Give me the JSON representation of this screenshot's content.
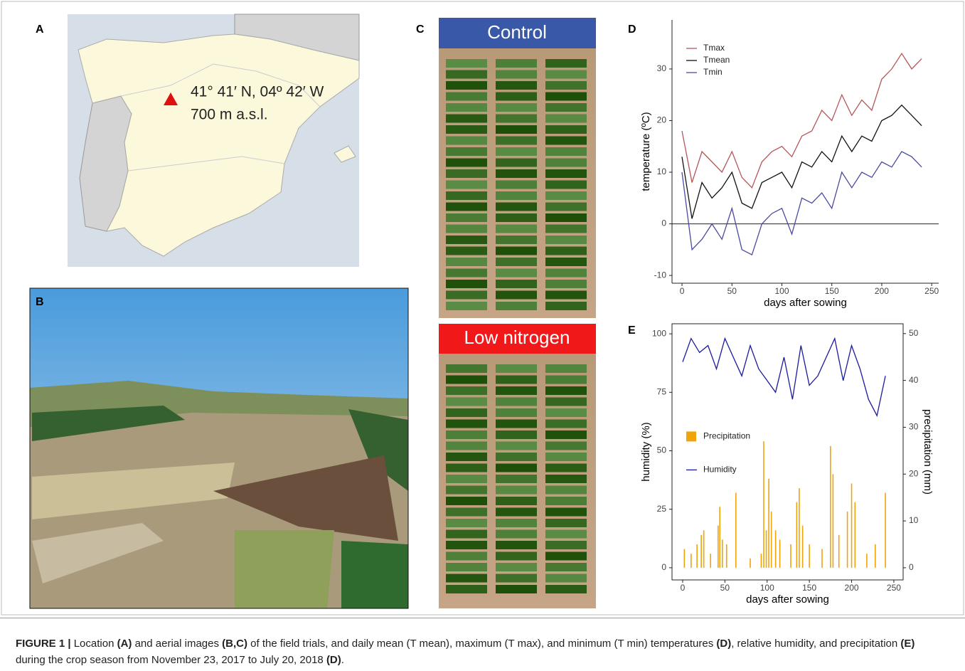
{
  "panels": {
    "A": {
      "letter": "A",
      "coordinates": "41° 41′ N, 04º 42′ W",
      "altitude": "700 m a.s.l."
    },
    "B": {
      "letter": "B"
    },
    "C": {
      "letter": "C",
      "top_label": "Control",
      "bottom_label": "Low nitrogen"
    },
    "D": {
      "letter": "D"
    },
    "E": {
      "letter": "E"
    }
  },
  "chart_data": [
    {
      "type": "line",
      "x_label": "days after sowing",
      "y_label": "temperature (ºC)",
      "x": [
        0,
        10,
        20,
        30,
        40,
        50,
        60,
        70,
        80,
        90,
        100,
        110,
        120,
        130,
        140,
        150,
        160,
        170,
        180,
        190,
        200,
        210,
        220,
        230,
        240
      ],
      "series": [
        {
          "name": "Tmax",
          "color": "#b5565a",
          "values": [
            18,
            8,
            14,
            12,
            10,
            14,
            9,
            7,
            12,
            14,
            15,
            13,
            17,
            18,
            22,
            20,
            25,
            21,
            24,
            22,
            28,
            30,
            33,
            30,
            32
          ]
        },
        {
          "name": "Tmean",
          "color": "#111111",
          "values": [
            13,
            1,
            8,
            5,
            7,
            10,
            4,
            3,
            8,
            9,
            10,
            7,
            12,
            11,
            14,
            12,
            17,
            14,
            17,
            16,
            20,
            21,
            23,
            21,
            19
          ]
        },
        {
          "name": "Tmin",
          "color": "#4a4aa0",
          "values": [
            10,
            -5,
            -3,
            0,
            -3,
            3,
            -5,
            -6,
            0,
            2,
            3,
            -2,
            5,
            4,
            6,
            3,
            10,
            7,
            10,
            9,
            12,
            11,
            14,
            13,
            11
          ]
        }
      ],
      "xlim": [
        -10,
        257
      ],
      "xticks": [
        0,
        50,
        100,
        150,
        200,
        250
      ],
      "ylim": [
        -11.5,
        39.5
      ],
      "yticks": [
        -10,
        0,
        10,
        20,
        30
      ],
      "reference_line": 0,
      "legend": "top-left",
      "frame": false
    },
    {
      "type": "line",
      "x_label": "days after sowing",
      "y_label": "humidity (%)",
      "y2_label": "precipitation (mm)",
      "x": [
        0,
        10,
        20,
        30,
        40,
        50,
        60,
        70,
        80,
        90,
        100,
        110,
        120,
        130,
        140,
        150,
        160,
        170,
        180,
        190,
        200,
        210,
        220,
        230,
        240
      ],
      "series": [
        {
          "name": "Precipitation",
          "type": "bar",
          "axis": "y2",
          "color": "#f0a30a",
          "x": [
            2,
            10,
            17,
            22,
            25,
            33,
            42,
            44,
            47,
            52,
            63,
            80,
            93,
            96,
            99,
            102,
            105,
            110,
            115,
            128,
            135,
            138,
            142,
            150,
            165,
            175,
            178,
            185,
            195,
            200,
            204,
            218,
            228,
            240
          ],
          "values": [
            4,
            3,
            5,
            7,
            8,
            3,
            9,
            13,
            6,
            5,
            16,
            2,
            3,
            27,
            8,
            19,
            12,
            8,
            6,
            5,
            14,
            17,
            9,
            5,
            4,
            26,
            20,
            7,
            12,
            18,
            14,
            3,
            5,
            16
          ]
        },
        {
          "name": "Humidity",
          "color": "#1a1a9e",
          "values": [
            88,
            98,
            92,
            95,
            85,
            98,
            90,
            82,
            95,
            85,
            80,
            75,
            90,
            72,
            95,
            78,
            82,
            90,
            98,
            80,
            95,
            85,
            72,
            65,
            82
          ]
        }
      ],
      "xlim": [
        -12.6,
        261
      ],
      "xticks": [
        0,
        50,
        100,
        150,
        200,
        250
      ],
      "ylim": [
        -5.2,
        104.3
      ],
      "yticks": [
        0,
        25,
        50,
        75,
        100
      ],
      "y2lim": [
        -2.6,
        52.1
      ],
      "y2ticks": [
        0,
        10,
        20,
        30,
        40,
        50
      ],
      "legend": "center-left",
      "frame": true
    }
  ],
  "caption": [
    {
      "text": "FIGURE 1 |",
      "bold": true
    },
    {
      "text": " Location ",
      "bold": false
    },
    {
      "text": "(A)",
      "bold": true
    },
    {
      "text": " and aerial images ",
      "bold": false
    },
    {
      "text": "(B,C)",
      "bold": true
    },
    {
      "text": " of the field trials, and daily mean (T mean), maximum (T max), and minimum (T min) temperatures ",
      "bold": false
    },
    {
      "text": "(D)",
      "bold": true
    },
    {
      "text": ", relative humidity, and precipitation ",
      "bold": false
    },
    {
      "text": "(E)",
      "bold": true
    },
    {
      "text": " during the crop season from November 23, 2017 to July 20, 2018 ",
      "bold": false
    },
    {
      "text": "(D)",
      "bold": true
    },
    {
      "text": ".",
      "bold": false
    }
  ]
}
